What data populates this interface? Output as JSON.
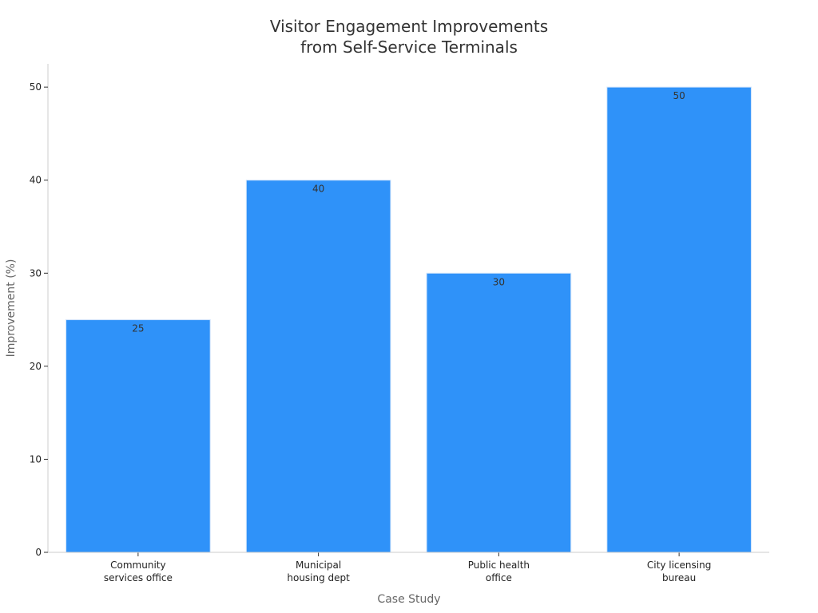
{
  "chart_data": {
    "type": "bar",
    "title_lines": [
      "Visitor Engagement Improvements",
      "from Self-Service Terminals"
    ],
    "xlabel": "Case Study",
    "ylabel": "Improvement (%)",
    "categories": [
      [
        "Community",
        "services office"
      ],
      [
        "Municipal",
        "housing dept"
      ],
      [
        "Public health",
        "office"
      ],
      [
        "City licensing",
        "bureau"
      ]
    ],
    "values": [
      25,
      40,
      30,
      50
    ],
    "data_labels": [
      "25",
      "40",
      "30",
      "50"
    ],
    "ylim": [
      0,
      52.5
    ],
    "yticks": [
      0,
      10,
      20,
      30,
      40,
      50
    ],
    "grid": false,
    "legend": "none",
    "bar_color": "#2f92f9",
    "text_color": "#333333",
    "axis_color": "#cccccc"
  }
}
